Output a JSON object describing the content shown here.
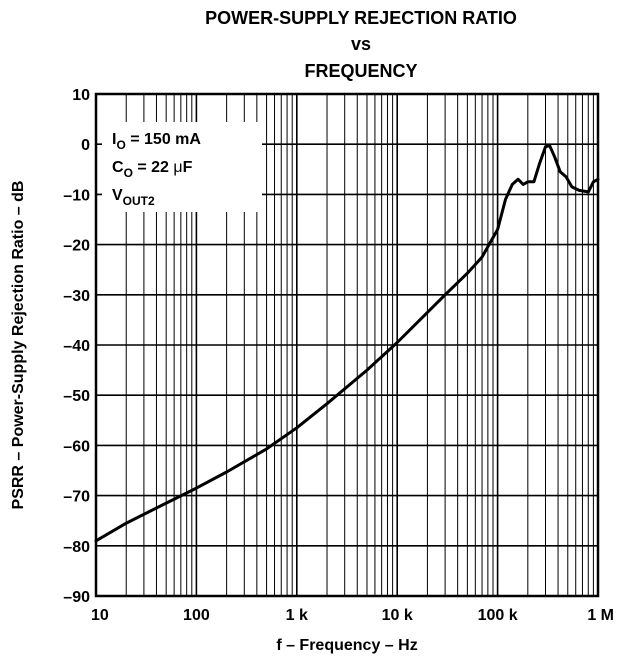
{
  "chart_data": {
    "type": "line",
    "title": [
      "POWER-SUPPLY REJECTION RATIO",
      "vs",
      "FREQUENCY"
    ],
    "xlabel": "f – Frequency – Hz",
    "ylabel": "PSRR – Power-Supply Rejection Ratio – dB",
    "x_scale": "log",
    "xlim": [
      10,
      1000000
    ],
    "ylim": [
      -90,
      10
    ],
    "grid": true,
    "x_ticks": [
      {
        "value": 10,
        "label": "10"
      },
      {
        "value": 100,
        "label": "100"
      },
      {
        "value": 1000,
        "label": "1 k"
      },
      {
        "value": 10000,
        "label": "10 k"
      },
      {
        "value": 100000,
        "label": "100 k"
      },
      {
        "value": 1000000,
        "label": "1 M"
      }
    ],
    "y_ticks": [
      {
        "value": 10,
        "label": "10"
      },
      {
        "value": 0,
        "label": "0"
      },
      {
        "value": -10,
        "label": "–10"
      },
      {
        "value": -20,
        "label": "–20"
      },
      {
        "value": -30,
        "label": "–30"
      },
      {
        "value": -40,
        "label": "–40"
      },
      {
        "value": -50,
        "label": "–50"
      },
      {
        "value": -60,
        "label": "–60"
      },
      {
        "value": -70,
        "label": "–70"
      },
      {
        "value": -80,
        "label": "–80"
      },
      {
        "value": -90,
        "label": "–90"
      }
    ],
    "conditions": {
      "io": {
        "sym": "I",
        "sub": "O",
        "rest": " = 150 mA"
      },
      "co": {
        "sym": "C",
        "sub": "O",
        "rest": " = 22 ",
        "mu": "μ",
        "unit": "F"
      },
      "vout": {
        "sym": "V",
        "sub": "OUT2"
      }
    },
    "legend_position": "top-left",
    "series": [
      {
        "x": [
          10,
          20,
          50,
          100,
          200,
          500,
          1000,
          2000,
          5000,
          10000,
          20000,
          30000,
          50000,
          70000,
          100000,
          120000,
          140000,
          160000,
          180000,
          200000,
          230000,
          260000,
          300000,
          330000,
          370000,
          420000,
          480000,
          550000,
          650000,
          800000,
          900000,
          1000000
        ],
        "y": [
          -79,
          -75.5,
          -71.5,
          -68.5,
          -65.3,
          -60.7,
          -56.5,
          -51.7,
          -45,
          -39.5,
          -33.5,
          -30,
          -25.7,
          -22.5,
          -17,
          -11,
          -8,
          -7,
          -8,
          -7.5,
          -7.5,
          -4,
          -0.5,
          -0.3,
          -2.5,
          -5.5,
          -6.5,
          -8.5,
          -9.2,
          -9.5,
          -7.5,
          -7
        ]
      }
    ]
  }
}
